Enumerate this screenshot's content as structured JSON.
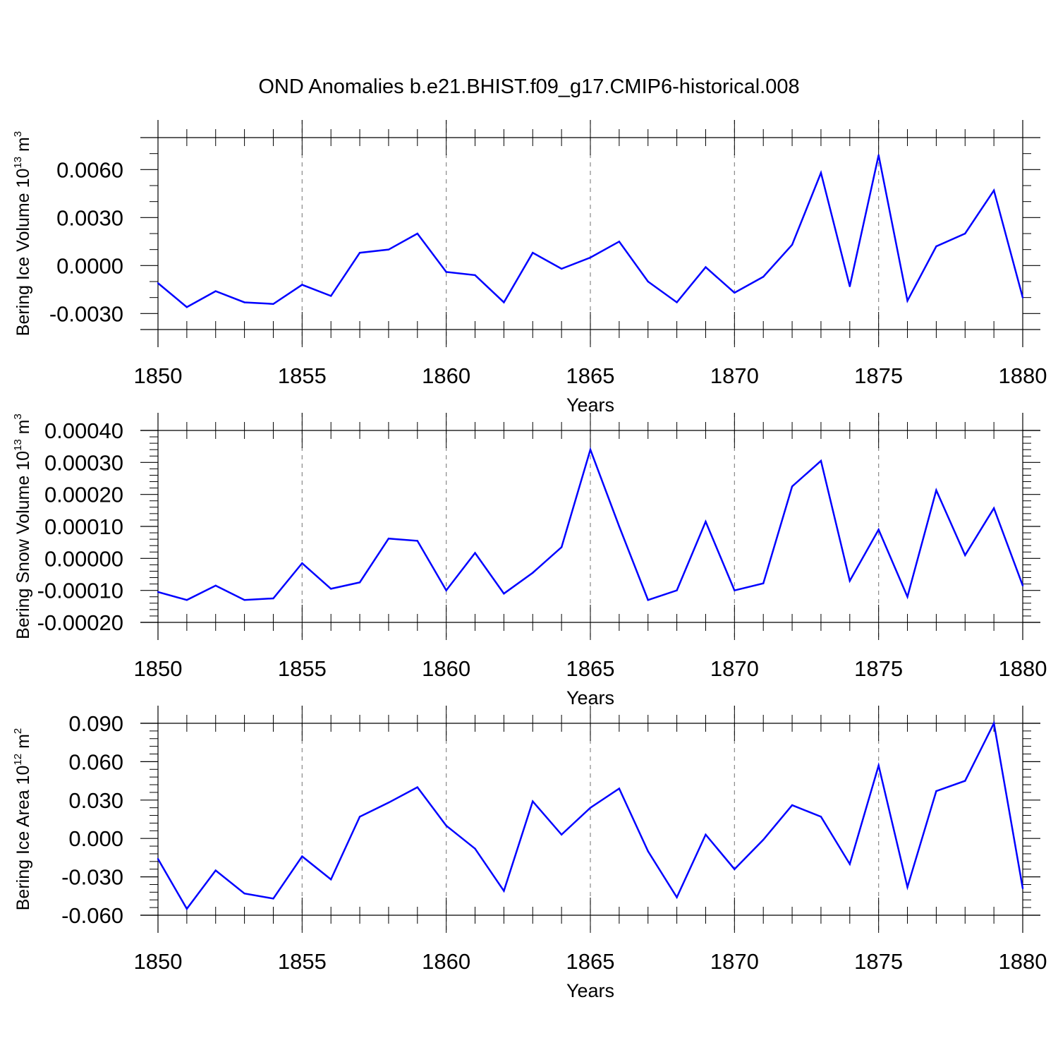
{
  "chart_data": {
    "title": "OND Anomalies b.e21.BHIST.f09_g17.CMIP6-historical.008",
    "type": "line",
    "x": [
      1850,
      1851,
      1852,
      1853,
      1854,
      1855,
      1856,
      1857,
      1858,
      1859,
      1860,
      1861,
      1862,
      1863,
      1864,
      1865,
      1866,
      1867,
      1868,
      1869,
      1870,
      1871,
      1872,
      1873,
      1874,
      1875,
      1876,
      1877,
      1878,
      1879,
      1880
    ],
    "series_color": "#0000ff",
    "panels": [
      {
        "name": "ice-volume",
        "ylabel": "Bering Ice Volume 10",
        "ylabel_exp": "13",
        "ylabel_unit": " m",
        "ylabel_unit_exp": "3",
        "xlabel": "Years",
        "xlim": [
          1850,
          1880
        ],
        "ylim": [
          -0.004,
          0.008
        ],
        "yticks": [
          -0.003,
          0.0,
          0.003,
          0.006
        ],
        "ytick_labels": [
          "-0.0030",
          "0.0000",
          "0.0030",
          "0.0060"
        ],
        "yminor_step": 0.001,
        "xticks": [
          1850,
          1855,
          1860,
          1865,
          1870,
          1875,
          1880
        ],
        "xtick_labels": [
          "1850",
          "1855",
          "1860",
          "1865",
          "1870",
          "1875",
          "1880"
        ],
        "values": [
          -0.0011,
          -0.0026,
          -0.0016,
          -0.0023,
          -0.0024,
          -0.0012,
          -0.0019,
          0.0008,
          0.001,
          0.002,
          -0.0004,
          -0.0006,
          -0.0023,
          0.0008,
          -0.0002,
          0.0005,
          0.0015,
          -0.001,
          -0.0023,
          -0.0001,
          -0.0017,
          -0.0007,
          0.0013,
          0.0058,
          -0.0013,
          0.0069,
          -0.0022,
          0.0012,
          0.002,
          0.0047,
          -0.002
        ]
      },
      {
        "name": "snow-volume",
        "ylabel": "Bering Snow Volume 10",
        "ylabel_exp": "13",
        "ylabel_unit": " m",
        "ylabel_unit_exp": "3",
        "xlabel": "Years",
        "xlim": [
          1850,
          1880
        ],
        "ylim": [
          -0.0002,
          0.0004
        ],
        "yticks": [
          -0.0002,
          -0.0001,
          0.0,
          0.0001,
          0.0002,
          0.0003,
          0.0004
        ],
        "ytick_labels": [
          "-0.00020",
          "-0.00010",
          "0.00000",
          "0.00010",
          "0.00020",
          "0.00030",
          "0.00040"
        ],
        "yminor_step": 2e-05,
        "xticks": [
          1850,
          1855,
          1860,
          1865,
          1870,
          1875,
          1880
        ],
        "xtick_labels": [
          "1850",
          "1855",
          "1860",
          "1865",
          "1870",
          "1875",
          "1880"
        ],
        "values": [
          -0.000105,
          -0.00013,
          -8.5e-05,
          -0.00013,
          -0.000125,
          -1.5e-05,
          -9.5e-05,
          -7.5e-05,
          6.2e-05,
          5.5e-05,
          -0.0001,
          1.7e-05,
          -0.00011,
          -4.5e-05,
          3.5e-05,
          0.00034,
          0.0001,
          -0.00013,
          -0.0001,
          0.000115,
          -0.0001,
          -7.8e-05,
          0.000225,
          0.000305,
          -7e-05,
          9e-05,
          -0.00012,
          0.000213,
          1e-05,
          0.000157,
          -8.5e-05
        ]
      },
      {
        "name": "ice-area",
        "ylabel": "Bering Ice Area 10",
        "ylabel_exp": "12",
        "ylabel_unit": " m",
        "ylabel_unit_exp": "2",
        "xlabel": "Years",
        "xlim": [
          1850,
          1880
        ],
        "ylim": [
          -0.06,
          0.09
        ],
        "yticks": [
          -0.06,
          -0.03,
          0.0,
          0.03,
          0.06,
          0.09
        ],
        "ytick_labels": [
          "-0.060",
          "-0.030",
          "0.000",
          "0.030",
          "0.060",
          "0.090"
        ],
        "yminor_step": 0.006,
        "xticks": [
          1850,
          1855,
          1860,
          1865,
          1870,
          1875,
          1880
        ],
        "xtick_labels": [
          "1850",
          "1855",
          "1860",
          "1865",
          "1870",
          "1875",
          "1880"
        ],
        "values": [
          -0.016,
          -0.055,
          -0.025,
          -0.043,
          -0.047,
          -0.014,
          -0.032,
          0.017,
          0.028,
          0.04,
          0.01,
          -0.008,
          -0.041,
          0.029,
          0.003,
          0.024,
          0.039,
          -0.01,
          -0.046,
          0.003,
          -0.024,
          -0.001,
          0.026,
          0.017,
          -0.02,
          0.057,
          -0.038,
          0.037,
          0.045,
          0.09,
          -0.039
        ]
      }
    ]
  }
}
